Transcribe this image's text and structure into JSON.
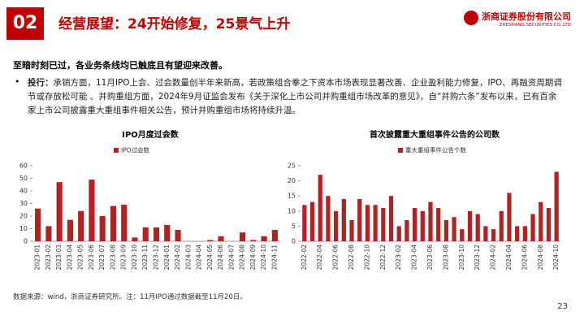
{
  "header": {
    "section": "02",
    "title": "经营展望：24开始修复，25景气上升",
    "logo": "浙商证券股份有限公司",
    "logo_en": "ZHESHANG SECURITIES CO.,LTD"
  },
  "subtitle": "至暗时刻已过，各业务条线均已触底且有望迎来改善。",
  "bullet": {
    "label": "投行：",
    "text": "承销方面，11月IPO上会、过会数量创半年来新高，若政策组合拳之下资本市场表现显著改善、企业盈利能力修复，IPO、再融资周期调节或存放松可能 。并购重组方面，2024年9月证监会发布《关于深化上市公司并购重组市场改革的意见》，自“并购六条”发布以来，已有百余家上市公司披露重大重组事件相关公告，预计并购重组市场将持续升温。"
  },
  "chart_data": [
    {
      "type": "bar",
      "title": "IPO月度过会数",
      "series": [
        {
          "name": "IPO过会数",
          "color": "#b22222",
          "values": [
            26,
            12,
            47,
            17,
            24,
            49,
            20,
            28,
            29,
            3,
            11,
            11,
            13,
            9,
            0,
            0,
            1,
            4,
            0,
            7,
            1,
            4,
            9
          ]
        }
      ],
      "categories": [
        "2023-01",
        "2023-02",
        "2023-03",
        "2023-04",
        "2023-05",
        "2023-06",
        "2023-07",
        "2023-08",
        "2023-09",
        "2023-10",
        "2023-11",
        "2023-12",
        "2024-01",
        "2024-02",
        "2024-03",
        "2024-04",
        "2024-05",
        "2024-06",
        "2024-07",
        "2024-08",
        "2024-09",
        "2024-10",
        "2024-11"
      ],
      "ylim": [
        0,
        60
      ],
      "yticks": [
        0,
        10,
        20,
        30,
        40,
        50,
        60
      ]
    },
    {
      "type": "bar",
      "title": "首次披露重大重组事件公告的公司数",
      "series": [
        {
          "name": "重大重组事件公告个数",
          "color": "#b22222",
          "values": [
            12,
            13,
            22,
            15,
            10,
            14,
            7,
            14,
            12,
            12,
            11,
            15,
            5,
            7,
            11,
            10,
            13,
            11,
            7,
            8,
            4,
            10,
            9,
            5,
            4,
            10,
            16,
            5,
            5,
            9,
            13,
            11,
            23
          ]
        }
      ],
      "categories": [
        "2022-02",
        null,
        "2022-04",
        null,
        "2022-06",
        null,
        "2022-08",
        null,
        "2022-10",
        null,
        "2022-12",
        null,
        "2023-02",
        null,
        "2023-04",
        null,
        "2023-06",
        null,
        "2023-08",
        null,
        "2023-10",
        null,
        "2023-12",
        null,
        "2024-02",
        null,
        "2024-04",
        null,
        "2024-06",
        null,
        "2024-08",
        null,
        "2024-10"
      ],
      "ylim": [
        0,
        25
      ],
      "yticks": [
        0,
        5,
        10,
        15,
        20,
        25
      ]
    }
  ],
  "footnote": "数据来源：wind，浙商证券研究所。注：11月IPO通过数据截至11月20日。",
  "page_number": "23"
}
